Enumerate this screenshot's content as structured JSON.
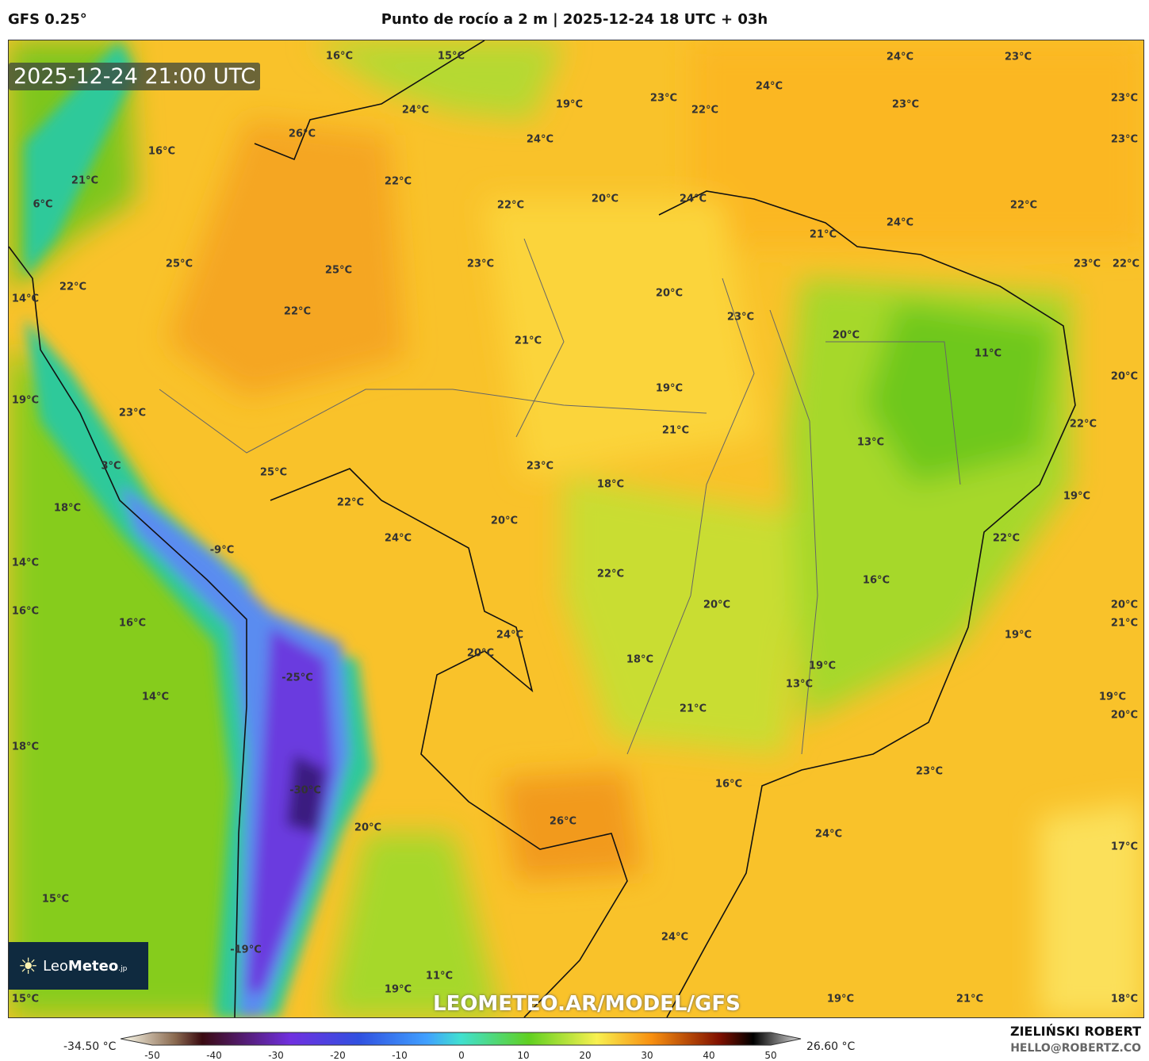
{
  "header": {
    "model": "GFS 0.25°",
    "title": "Punto de rocío a 2 m | 2025-12-24 18 UTC + 03h"
  },
  "map": {
    "valid_time": "2025-12-24 21:00 UTC",
    "watermark": "LEOMETEO.AR/MODEL/GFS",
    "logo": {
      "text_light": "Leo",
      "text_bold": "Meteo",
      "suffix": ".jp"
    },
    "labels": [
      "16°C",
      "15°C",
      "24°C",
      "23°C",
      "24°C",
      "19°C",
      "23°C",
      "22°C",
      "24°C",
      "23°C",
      "23°C",
      "26°C",
      "24°C",
      "23°C",
      "16°C",
      "21°C",
      "22°C",
      "6°C",
      "22°C",
      "20°C",
      "24°C",
      "22°C",
      "24°C",
      "21°C",
      "25°C",
      "25°C",
      "23°C",
      "23°C",
      "22°C",
      "22°C",
      "20°C",
      "14°C",
      "22°C",
      "23°C",
      "20°C",
      "21°C",
      "11°C",
      "20°C",
      "19°C",
      "19°C",
      "23°C",
      "21°C",
      "22°C",
      "13°C",
      "3°C",
      "23°C",
      "25°C",
      "18°C",
      "19°C",
      "18°C",
      "22°C",
      "20°C",
      "22°C",
      "24°C",
      "-9°C",
      "14°C",
      "22°C",
      "16°C",
      "20°C",
      "20°C",
      "16°C",
      "21°C",
      "16°C",
      "19°C",
      "24°C",
      "18°C",
      "20°C",
      "19°C",
      "-25°C",
      "13°C",
      "14°C",
      "19°C",
      "21°C",
      "20°C",
      "18°C",
      "23°C",
      "16°C",
      "-30°C",
      "26°C",
      "20°C",
      "24°C",
      "17°C",
      "15°C",
      "24°C",
      "-19°C",
      "11°C",
      "19°C",
      "15°C",
      "19°C",
      "21°C",
      "18°C"
    ]
  },
  "colorbar": {
    "min_label": "-34.50 °C",
    "max_label": "26.60 °C",
    "ticks": [
      "-50",
      "-40",
      "-30",
      "-20",
      "-10",
      "0",
      "10",
      "20",
      "30",
      "40",
      "50"
    ],
    "range": [
      -55,
      55
    ]
  },
  "footer": {
    "author": "ZIELIŃSKI ROBERT",
    "email": "HELLO@ROBERTZ.CO"
  }
}
